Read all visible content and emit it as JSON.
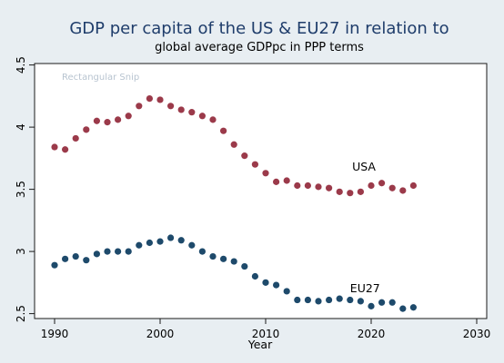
{
  "chart_data": {
    "type": "scatter",
    "title": "GDP per capita of the US & EU27 in relation to",
    "subtitle": "global average GDPpc in PPP terms",
    "xlabel": "Year",
    "ylabel": "",
    "xlim": [
      1990,
      2030
    ],
    "ylim": [
      2.5,
      4.5
    ],
    "xticks": [
      "1990",
      "2000",
      "2010",
      "2020",
      "2030"
    ],
    "yticks": [
      "2.5",
      "3",
      "3.5",
      "4",
      "4.5"
    ],
    "grid": false,
    "ghost_text": "Rectangular Snip",
    "series": [
      {
        "name": "USA",
        "color": "#9b3a4a",
        "x": [
          1990,
          1991,
          1992,
          1993,
          1994,
          1995,
          1996,
          1997,
          1998,
          1999,
          2000,
          2001,
          2002,
          2003,
          2004,
          2005,
          2006,
          2007,
          2008,
          2009,
          2010,
          2011,
          2012,
          2013,
          2014,
          2015,
          2016,
          2017,
          2018,
          2019,
          2020,
          2021,
          2022,
          2023,
          2024
        ],
        "y": [
          3.84,
          3.82,
          3.91,
          3.98,
          4.05,
          4.04,
          4.06,
          4.09,
          4.17,
          4.23,
          4.22,
          4.17,
          4.14,
          4.12,
          4.09,
          4.06,
          3.97,
          3.86,
          3.77,
          3.7,
          3.63,
          3.56,
          3.57,
          3.53,
          3.53,
          3.52,
          3.51,
          3.48,
          3.47,
          3.48,
          3.53,
          3.55,
          3.51,
          3.49,
          3.53
        ]
      },
      {
        "name": "EU27",
        "color": "#1e4a6b",
        "x": [
          1990,
          1991,
          1992,
          1993,
          1994,
          1995,
          1996,
          1997,
          1998,
          1999,
          2000,
          2001,
          2002,
          2003,
          2004,
          2005,
          2006,
          2007,
          2008,
          2009,
          2010,
          2011,
          2012,
          2013,
          2014,
          2015,
          2016,
          2017,
          2018,
          2019,
          2020,
          2021,
          2022,
          2023,
          2024
        ],
        "y": [
          2.89,
          2.94,
          2.96,
          2.93,
          2.98,
          3.0,
          3.0,
          3.0,
          3.05,
          3.07,
          3.08,
          3.11,
          3.09,
          3.05,
          3.0,
          2.96,
          2.94,
          2.92,
          2.88,
          2.8,
          2.75,
          2.73,
          2.68,
          2.61,
          2.61,
          2.6,
          2.61,
          2.62,
          2.61,
          2.6,
          2.56,
          2.59,
          2.59,
          2.54,
          2.55
        ]
      }
    ],
    "series_labels": [
      {
        "text": "USA",
        "x": 2018.2,
        "y": 3.68
      },
      {
        "text": "EU27",
        "x": 2018.0,
        "y": 2.7
      }
    ]
  }
}
